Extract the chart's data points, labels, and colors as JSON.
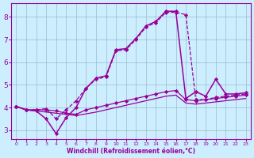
{
  "background_color": "#cceeff",
  "line_color": "#990099",
  "grid_color": "#99bbcc",
  "xlabel": "Windchill (Refroidissement éolien,°C)",
  "xlim": [
    -0.5,
    23.5
  ],
  "ylim": [
    2.6,
    8.6
  ],
  "xticks": [
    0,
    1,
    2,
    3,
    4,
    5,
    6,
    7,
    8,
    9,
    10,
    11,
    12,
    13,
    14,
    15,
    16,
    17,
    18,
    19,
    20,
    21,
    22,
    23
  ],
  "yticks": [
    3,
    4,
    5,
    6,
    7,
    8
  ],
  "series": [
    {
      "x": [
        0,
        1,
        2,
        3,
        4,
        5,
        6,
        7,
        8,
        9,
        10,
        11,
        12,
        13,
        14,
        15,
        16,
        17,
        18,
        19,
        20,
        21,
        22,
        23
      ],
      "y": [
        4.05,
        3.9,
        3.9,
        3.9,
        3.85,
        3.75,
        3.7,
        3.9,
        4.0,
        4.1,
        4.2,
        4.3,
        4.4,
        4.5,
        4.6,
        4.7,
        4.75,
        4.35,
        4.3,
        4.35,
        4.4,
        4.45,
        4.5,
        4.55
      ],
      "linestyle": "-",
      "marker": "D",
      "markersize": 2.2,
      "linewidth": 0.9
    },
    {
      "x": [
        0,
        1,
        2,
        3,
        4,
        5,
        6,
        7,
        8,
        9,
        10,
        11,
        12,
        13,
        14,
        15,
        16,
        17,
        18,
        19,
        20,
        21,
        22,
        23
      ],
      "y": [
        4.05,
        3.9,
        3.85,
        3.8,
        3.75,
        3.7,
        3.65,
        3.72,
        3.8,
        3.9,
        4.0,
        4.1,
        4.2,
        4.3,
        4.4,
        4.5,
        4.55,
        4.2,
        4.15,
        4.2,
        4.25,
        4.3,
        4.35,
        4.4
      ],
      "linestyle": "-",
      "marker": "None",
      "markersize": 2.0,
      "linewidth": 0.9
    },
    {
      "x": [
        0,
        1,
        2,
        3,
        4,
        5,
        6,
        7,
        8,
        9,
        10,
        11,
        12,
        13,
        14,
        15,
        16,
        17,
        18,
        19,
        20,
        21,
        22,
        23
      ],
      "y": [
        4.05,
        3.9,
        3.9,
        3.95,
        3.5,
        3.9,
        4.3,
        4.85,
        5.25,
        5.35,
        6.5,
        6.55,
        7.0,
        7.55,
        7.75,
        8.2,
        8.2,
        8.1,
        4.35,
        4.35,
        4.45,
        4.5,
        4.55,
        4.6
      ],
      "linestyle": "--",
      "marker": "D",
      "markersize": 2.2,
      "linewidth": 0.9
    },
    {
      "x": [
        0,
        1,
        2,
        3,
        4,
        5,
        6,
        7,
        8,
        9,
        10,
        11,
        12,
        13,
        14,
        15,
        16,
        17,
        18,
        19,
        20,
        21,
        22,
        23
      ],
      "y": [
        4.05,
        3.9,
        3.85,
        3.5,
        2.85,
        3.55,
        4.0,
        4.85,
        5.3,
        5.4,
        6.55,
        6.6,
        7.05,
        7.6,
        7.8,
        8.25,
        8.25,
        4.4,
        4.7,
        4.5,
        5.25,
        4.6,
        4.6,
        4.65
      ],
      "linestyle": "-",
      "marker": "D",
      "markersize": 2.2,
      "linewidth": 1.1
    }
  ]
}
